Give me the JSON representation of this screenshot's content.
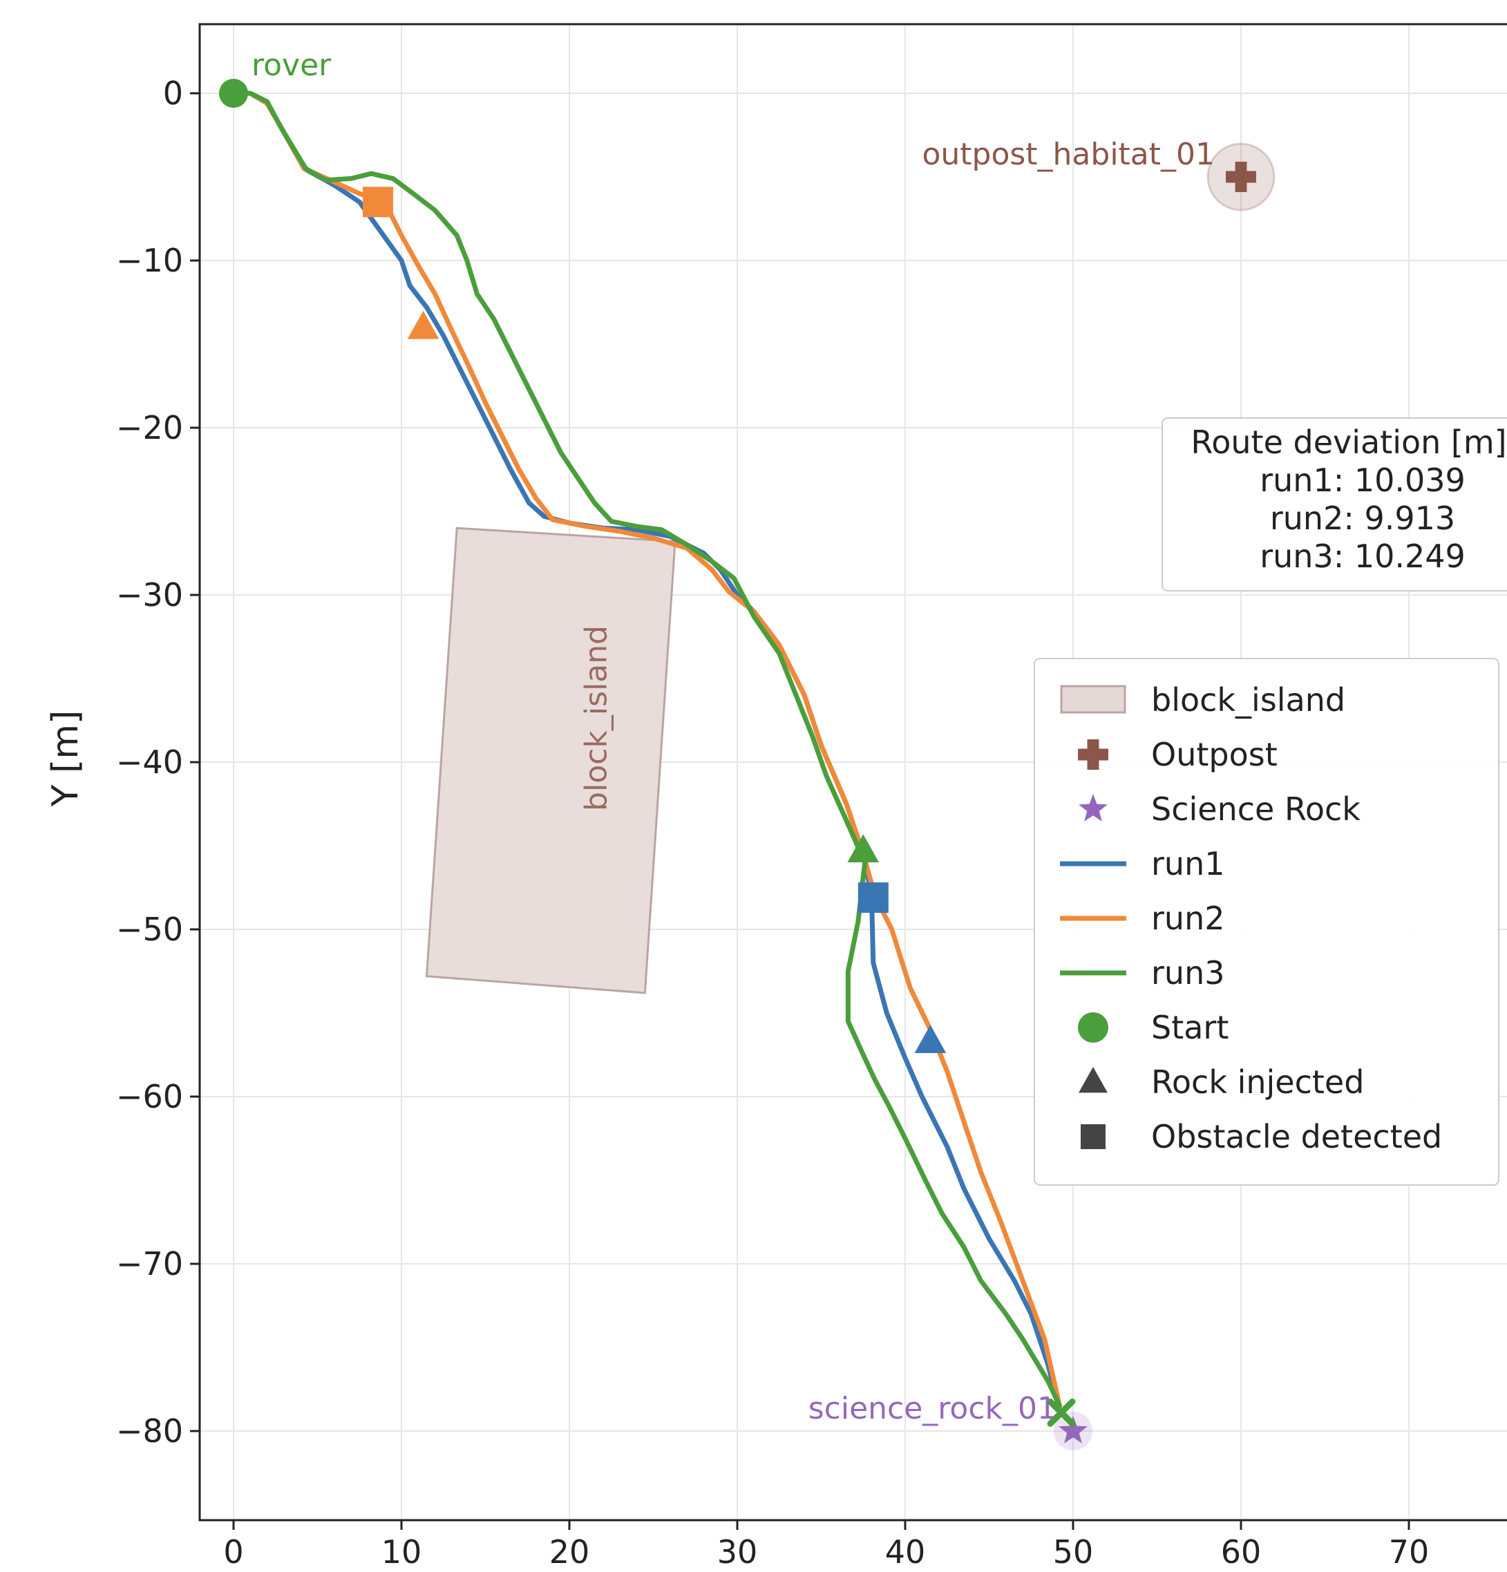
{
  "chart_data": {
    "type": "line",
    "title": "",
    "xlabel": "",
    "ylabel": "Y [m]",
    "xlim": [
      -2,
      76
    ],
    "ylim": [
      -85,
      4
    ],
    "x_ticks": [
      "0",
      "10",
      "20",
      "30",
      "40",
      "50",
      "60",
      "70"
    ],
    "y_ticks": [
      "0",
      "−10",
      "−20",
      "−30",
      "−40",
      "−50",
      "−60",
      "−70",
      "−80"
    ],
    "grid": true,
    "colors": {
      "run1": "#3a76b4",
      "run2": "#f0893a",
      "run3": "#4a9e3c",
      "outpost": "#8c564b",
      "science": "#9467bd",
      "block_fill": "#e5d9d7",
      "block_edge": "#bca4a1",
      "marker_dark": "#444444"
    },
    "series": [
      {
        "name": "run1",
        "points": [
          [
            0,
            0
          ],
          [
            1,
            0
          ],
          [
            2,
            -0.6
          ],
          [
            2.7,
            -1.8
          ],
          [
            4.2,
            -4.5
          ],
          [
            6,
            -5.5
          ],
          [
            7.5,
            -6.5
          ],
          [
            9,
            -8.6
          ],
          [
            10,
            -10
          ],
          [
            10.5,
            -11.5
          ],
          [
            11.5,
            -12.8
          ],
          [
            12.5,
            -14.5
          ],
          [
            13.5,
            -16.5
          ],
          [
            14.5,
            -18.5
          ],
          [
            15.5,
            -20.5
          ],
          [
            16.5,
            -22.5
          ],
          [
            17.6,
            -24.5
          ],
          [
            18.5,
            -25.3
          ],
          [
            20,
            -25.7
          ],
          [
            22,
            -26
          ],
          [
            24,
            -26.1
          ],
          [
            26,
            -26.5
          ],
          [
            28,
            -27.5
          ],
          [
            29,
            -28.5
          ],
          [
            30,
            -30
          ],
          [
            31,
            -31
          ],
          [
            32.5,
            -33
          ],
          [
            34,
            -36
          ],
          [
            35,
            -39
          ],
          [
            36.5,
            -42.5
          ],
          [
            37.5,
            -45.5
          ],
          [
            38,
            -48
          ],
          [
            38.1,
            -52
          ],
          [
            38.9,
            -55
          ],
          [
            40,
            -57.7
          ],
          [
            41,
            -60
          ],
          [
            42.5,
            -63
          ],
          [
            43.5,
            -65.5
          ],
          [
            45,
            -68.5
          ],
          [
            46.5,
            -71
          ],
          [
            47.5,
            -73
          ],
          [
            48.5,
            -76
          ],
          [
            49.2,
            -78.8
          ]
        ]
      },
      {
        "name": "run2",
        "points": [
          [
            0,
            0
          ],
          [
            1,
            0
          ],
          [
            2,
            -0.6
          ],
          [
            2.7,
            -1.8
          ],
          [
            4.2,
            -4.5
          ],
          [
            6,
            -5.3
          ],
          [
            7.5,
            -6
          ],
          [
            9,
            -6.5
          ],
          [
            10,
            -8.5
          ],
          [
            11,
            -10.3
          ],
          [
            12,
            -12
          ],
          [
            13,
            -14.2
          ],
          [
            14,
            -16.3
          ],
          [
            15,
            -18.5
          ],
          [
            16,
            -20.5
          ],
          [
            17,
            -22.5
          ],
          [
            18,
            -24.2
          ],
          [
            19,
            -25.5
          ],
          [
            21,
            -25.9
          ],
          [
            23,
            -26.2
          ],
          [
            25,
            -26.6
          ],
          [
            27,
            -27.2
          ],
          [
            28.5,
            -28.5
          ],
          [
            29.5,
            -29.8
          ],
          [
            31,
            -31
          ],
          [
            32.5,
            -33
          ],
          [
            34,
            -36
          ],
          [
            35,
            -39
          ],
          [
            36.5,
            -42.5
          ],
          [
            37.5,
            -45.5
          ],
          [
            38.2,
            -48
          ],
          [
            39.2,
            -50
          ],
          [
            40.3,
            -53.5
          ],
          [
            41.5,
            -56
          ],
          [
            42.5,
            -58.5
          ],
          [
            43.5,
            -61.5
          ],
          [
            44.5,
            -64.5
          ],
          [
            45.7,
            -67.5
          ],
          [
            47,
            -71
          ],
          [
            48.3,
            -74.5
          ],
          [
            49.2,
            -78.5
          ]
        ]
      },
      {
        "name": "run3",
        "points": [
          [
            0,
            0
          ],
          [
            1,
            0
          ],
          [
            2,
            -0.5
          ],
          [
            2.8,
            -2
          ],
          [
            4.3,
            -4.5
          ],
          [
            5.5,
            -5.2
          ],
          [
            7,
            -5.1
          ],
          [
            8.2,
            -4.8
          ],
          [
            9.5,
            -5.1
          ],
          [
            10.7,
            -6
          ],
          [
            12,
            -7
          ],
          [
            13.3,
            -8.5
          ],
          [
            13.9,
            -10
          ],
          [
            14.5,
            -12
          ],
          [
            15.5,
            -13.5
          ],
          [
            16.5,
            -15.5
          ],
          [
            17.5,
            -17.5
          ],
          [
            18.5,
            -19.5
          ],
          [
            19.5,
            -21.5
          ],
          [
            20.5,
            -23
          ],
          [
            21.5,
            -24.5
          ],
          [
            22.5,
            -25.6
          ],
          [
            24,
            -25.9
          ],
          [
            25.5,
            -26.1
          ],
          [
            27,
            -27
          ],
          [
            28.5,
            -28
          ],
          [
            29.8,
            -29
          ],
          [
            31,
            -31.3
          ],
          [
            32.5,
            -33.5
          ],
          [
            33.5,
            -36
          ],
          [
            34.5,
            -38.5
          ],
          [
            35.3,
            -40.8
          ],
          [
            36.5,
            -43.5
          ],
          [
            37.6,
            -46
          ],
          [
            37.2,
            -49.5
          ],
          [
            36.6,
            -52.5
          ],
          [
            36.6,
            -55.5
          ],
          [
            37.5,
            -57.5
          ],
          [
            38.2,
            -59
          ],
          [
            39,
            -60.5
          ],
          [
            40,
            -62.5
          ],
          [
            41.2,
            -65
          ],
          [
            42.2,
            -67
          ],
          [
            43.5,
            -69
          ],
          [
            44.5,
            -71
          ],
          [
            46,
            -73
          ],
          [
            47,
            -74.5
          ],
          [
            48.5,
            -77
          ],
          [
            49.2,
            -78.5
          ]
        ]
      }
    ],
    "markers": {
      "start": {
        "x": 0,
        "y": 0
      },
      "rock_injected": [
        {
          "run": "run1",
          "x": 41.5,
          "y": -56.7
        },
        {
          "run": "run2",
          "x": 11.3,
          "y": -14.0
        },
        {
          "run": "run3",
          "x": 37.5,
          "y": -45.3
        }
      ],
      "obstacle_detected": [
        {
          "run": "run1",
          "x": 38.1,
          "y": -48.1
        },
        {
          "run": "run2",
          "x": 8.6,
          "y": -6.5
        }
      ],
      "end": {
        "x": 49.3,
        "y": -78.9
      }
    },
    "outpost": {
      "label": "outpost_habitat_01",
      "x": 60,
      "y": -5
    },
    "science_rock": {
      "label": "science_rock_01",
      "x": 50,
      "y": -80
    },
    "rover_label": "rover",
    "block_island": {
      "label": "block_island",
      "corners": [
        [
          13.3,
          -26
        ],
        [
          26.3,
          -26.8
        ],
        [
          24.5,
          -53.8
        ],
        [
          11.5,
          -52.8
        ]
      ]
    },
    "route_deviation": {
      "title": "Route deviation [m]",
      "lines": [
        "run1: 10.039",
        "run2: 9.913",
        "run3: 10.249"
      ]
    },
    "legend": {
      "position": "right",
      "entries": [
        "block_island",
        "Outpost",
        "Science Rock",
        "run1",
        "run2",
        "run3",
        "Start",
        "Rock injected",
        "Obstacle detected"
      ]
    }
  }
}
